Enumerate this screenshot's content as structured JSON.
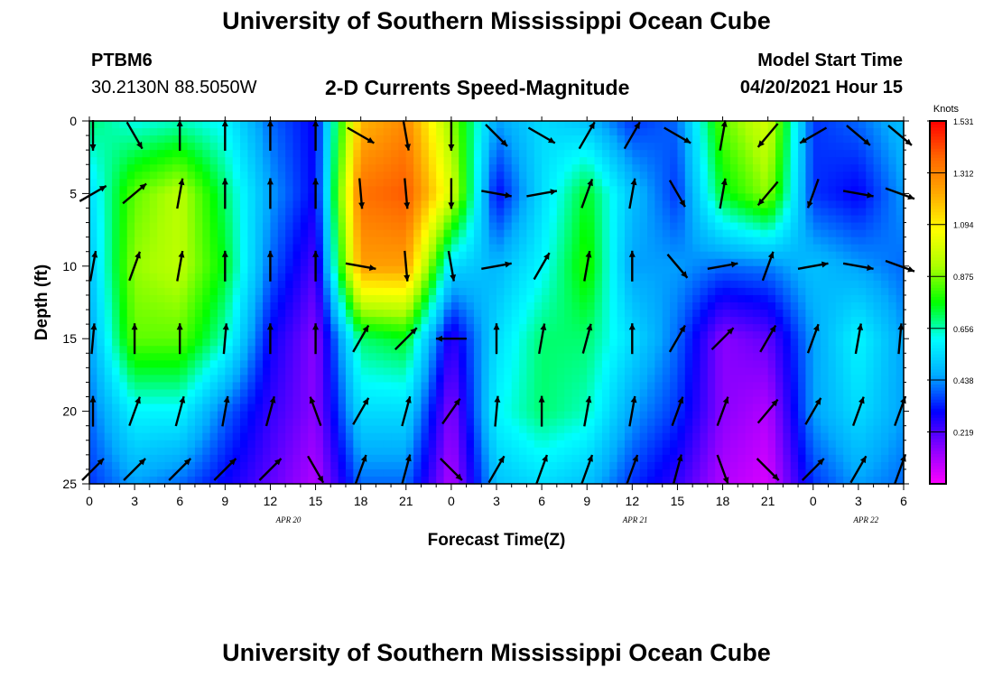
{
  "header": {
    "title": "University of Southern Mississippi Ocean Cube",
    "station_id": "PTBM6",
    "station_coords": "30.2130N  88.5050W",
    "chart_heading": "2-D Currents Speed-Magnitude",
    "model_start_label": "Model Start Time",
    "model_start_value": "04/20/2021 Hour 15"
  },
  "footer": {
    "title": "University of Southern Mississippi Ocean Cube"
  },
  "chart_data": {
    "type": "heatmap",
    "title": "2-D Currents Speed-Magnitude",
    "xlabel": "Forecast Time(Z)",
    "ylabel": "Depth (ft)",
    "x_tick_labels": [
      "0",
      "3",
      "6",
      "9",
      "12",
      "15",
      "18",
      "21",
      "0",
      "3",
      "6",
      "9",
      "12",
      "15",
      "18",
      "21",
      "0",
      "3",
      "6"
    ],
    "date_labels": [
      "APR 20",
      "APR 21",
      "APR 22"
    ],
    "y_ticks": [
      0,
      5,
      10,
      15,
      20,
      25
    ],
    "ylim": [
      0,
      25
    ],
    "y_inverted": true,
    "colorbar": {
      "unit": "Knots",
      "tick_labels": [
        "1.531",
        "1.312",
        "1.094",
        "0.875",
        "0.656",
        "0.438",
        "0.219"
      ],
      "range": [
        0,
        1.531
      ],
      "colors": [
        "#ff00ff",
        "#8800ff",
        "#0000ff",
        "#00aaff",
        "#00ffff",
        "#00ff00",
        "#aaff00",
        "#ffff00",
        "#ffaa00",
        "#ff6600",
        "#ff0000"
      ]
    },
    "x_hours": [
      0,
      3,
      6,
      9,
      12,
      15,
      18,
      21,
      24,
      27,
      30,
      33,
      36,
      39,
      42,
      45,
      48,
      51,
      54
    ],
    "depths": [
      0,
      5,
      10,
      15,
      20,
      25
    ],
    "speed_knots": [
      [
        0.7,
        0.62,
        0.65,
        0.6,
        0.4,
        0.3,
        1.2,
        1.3,
        0.9,
        0.45,
        0.55,
        0.5,
        0.35,
        0.4,
        0.85,
        1.0,
        0.35,
        0.4,
        0.5
      ],
      [
        0.55,
        0.85,
        0.95,
        0.7,
        0.45,
        0.3,
        1.35,
        1.4,
        1.0,
        0.3,
        0.55,
        0.75,
        0.5,
        0.35,
        0.75,
        0.9,
        0.35,
        0.3,
        0.45
      ],
      [
        0.5,
        0.9,
        0.95,
        0.75,
        0.4,
        0.22,
        1.25,
        1.25,
        0.55,
        0.48,
        0.6,
        0.8,
        0.45,
        0.45,
        0.4,
        0.42,
        0.5,
        0.45,
        0.4
      ],
      [
        0.45,
        0.85,
        0.85,
        0.65,
        0.3,
        0.15,
        0.7,
        0.75,
        0.25,
        0.55,
        0.7,
        0.7,
        0.55,
        0.4,
        0.15,
        0.2,
        0.45,
        0.6,
        0.45
      ],
      [
        0.4,
        0.6,
        0.6,
        0.4,
        0.25,
        0.15,
        0.55,
        0.55,
        0.15,
        0.6,
        0.7,
        0.65,
        0.45,
        0.35,
        0.15,
        0.1,
        0.45,
        0.55,
        0.45
      ],
      [
        0.35,
        0.45,
        0.4,
        0.3,
        0.2,
        0.1,
        0.4,
        0.4,
        0.1,
        0.5,
        0.55,
        0.5,
        0.35,
        0.25,
        0.1,
        0.05,
        0.35,
        0.45,
        0.4
      ]
    ],
    "vector_headings_deg": [
      [
        180,
        150,
        0,
        0,
        0,
        0,
        120,
        170,
        180,
        135,
        120,
        30,
        30,
        120,
        10,
        220,
        240,
        130,
        130
      ],
      [
        60,
        50,
        10,
        0,
        0,
        0,
        175,
        175,
        180,
        100,
        80,
        20,
        10,
        150,
        10,
        220,
        200,
        100,
        110
      ],
      [
        10,
        20,
        10,
        0,
        0,
        0,
        100,
        175,
        170,
        80,
        30,
        10,
        0,
        140,
        80,
        20,
        80,
        100,
        110
      ],
      [
        5,
        0,
        0,
        5,
        0,
        0,
        30,
        45,
        270,
        0,
        10,
        15,
        0,
        30,
        45,
        30,
        20,
        10,
        5
      ],
      [
        0,
        20,
        15,
        10,
        15,
        340,
        30,
        15,
        35,
        5,
        0,
        10,
        10,
        20,
        20,
        40,
        30,
        20,
        20
      ],
      [
        45,
        45,
        45,
        45,
        45,
        150,
        20,
        15,
        135,
        30,
        20,
        20,
        20,
        15,
        160,
        135,
        45,
        30,
        20
      ]
    ]
  }
}
